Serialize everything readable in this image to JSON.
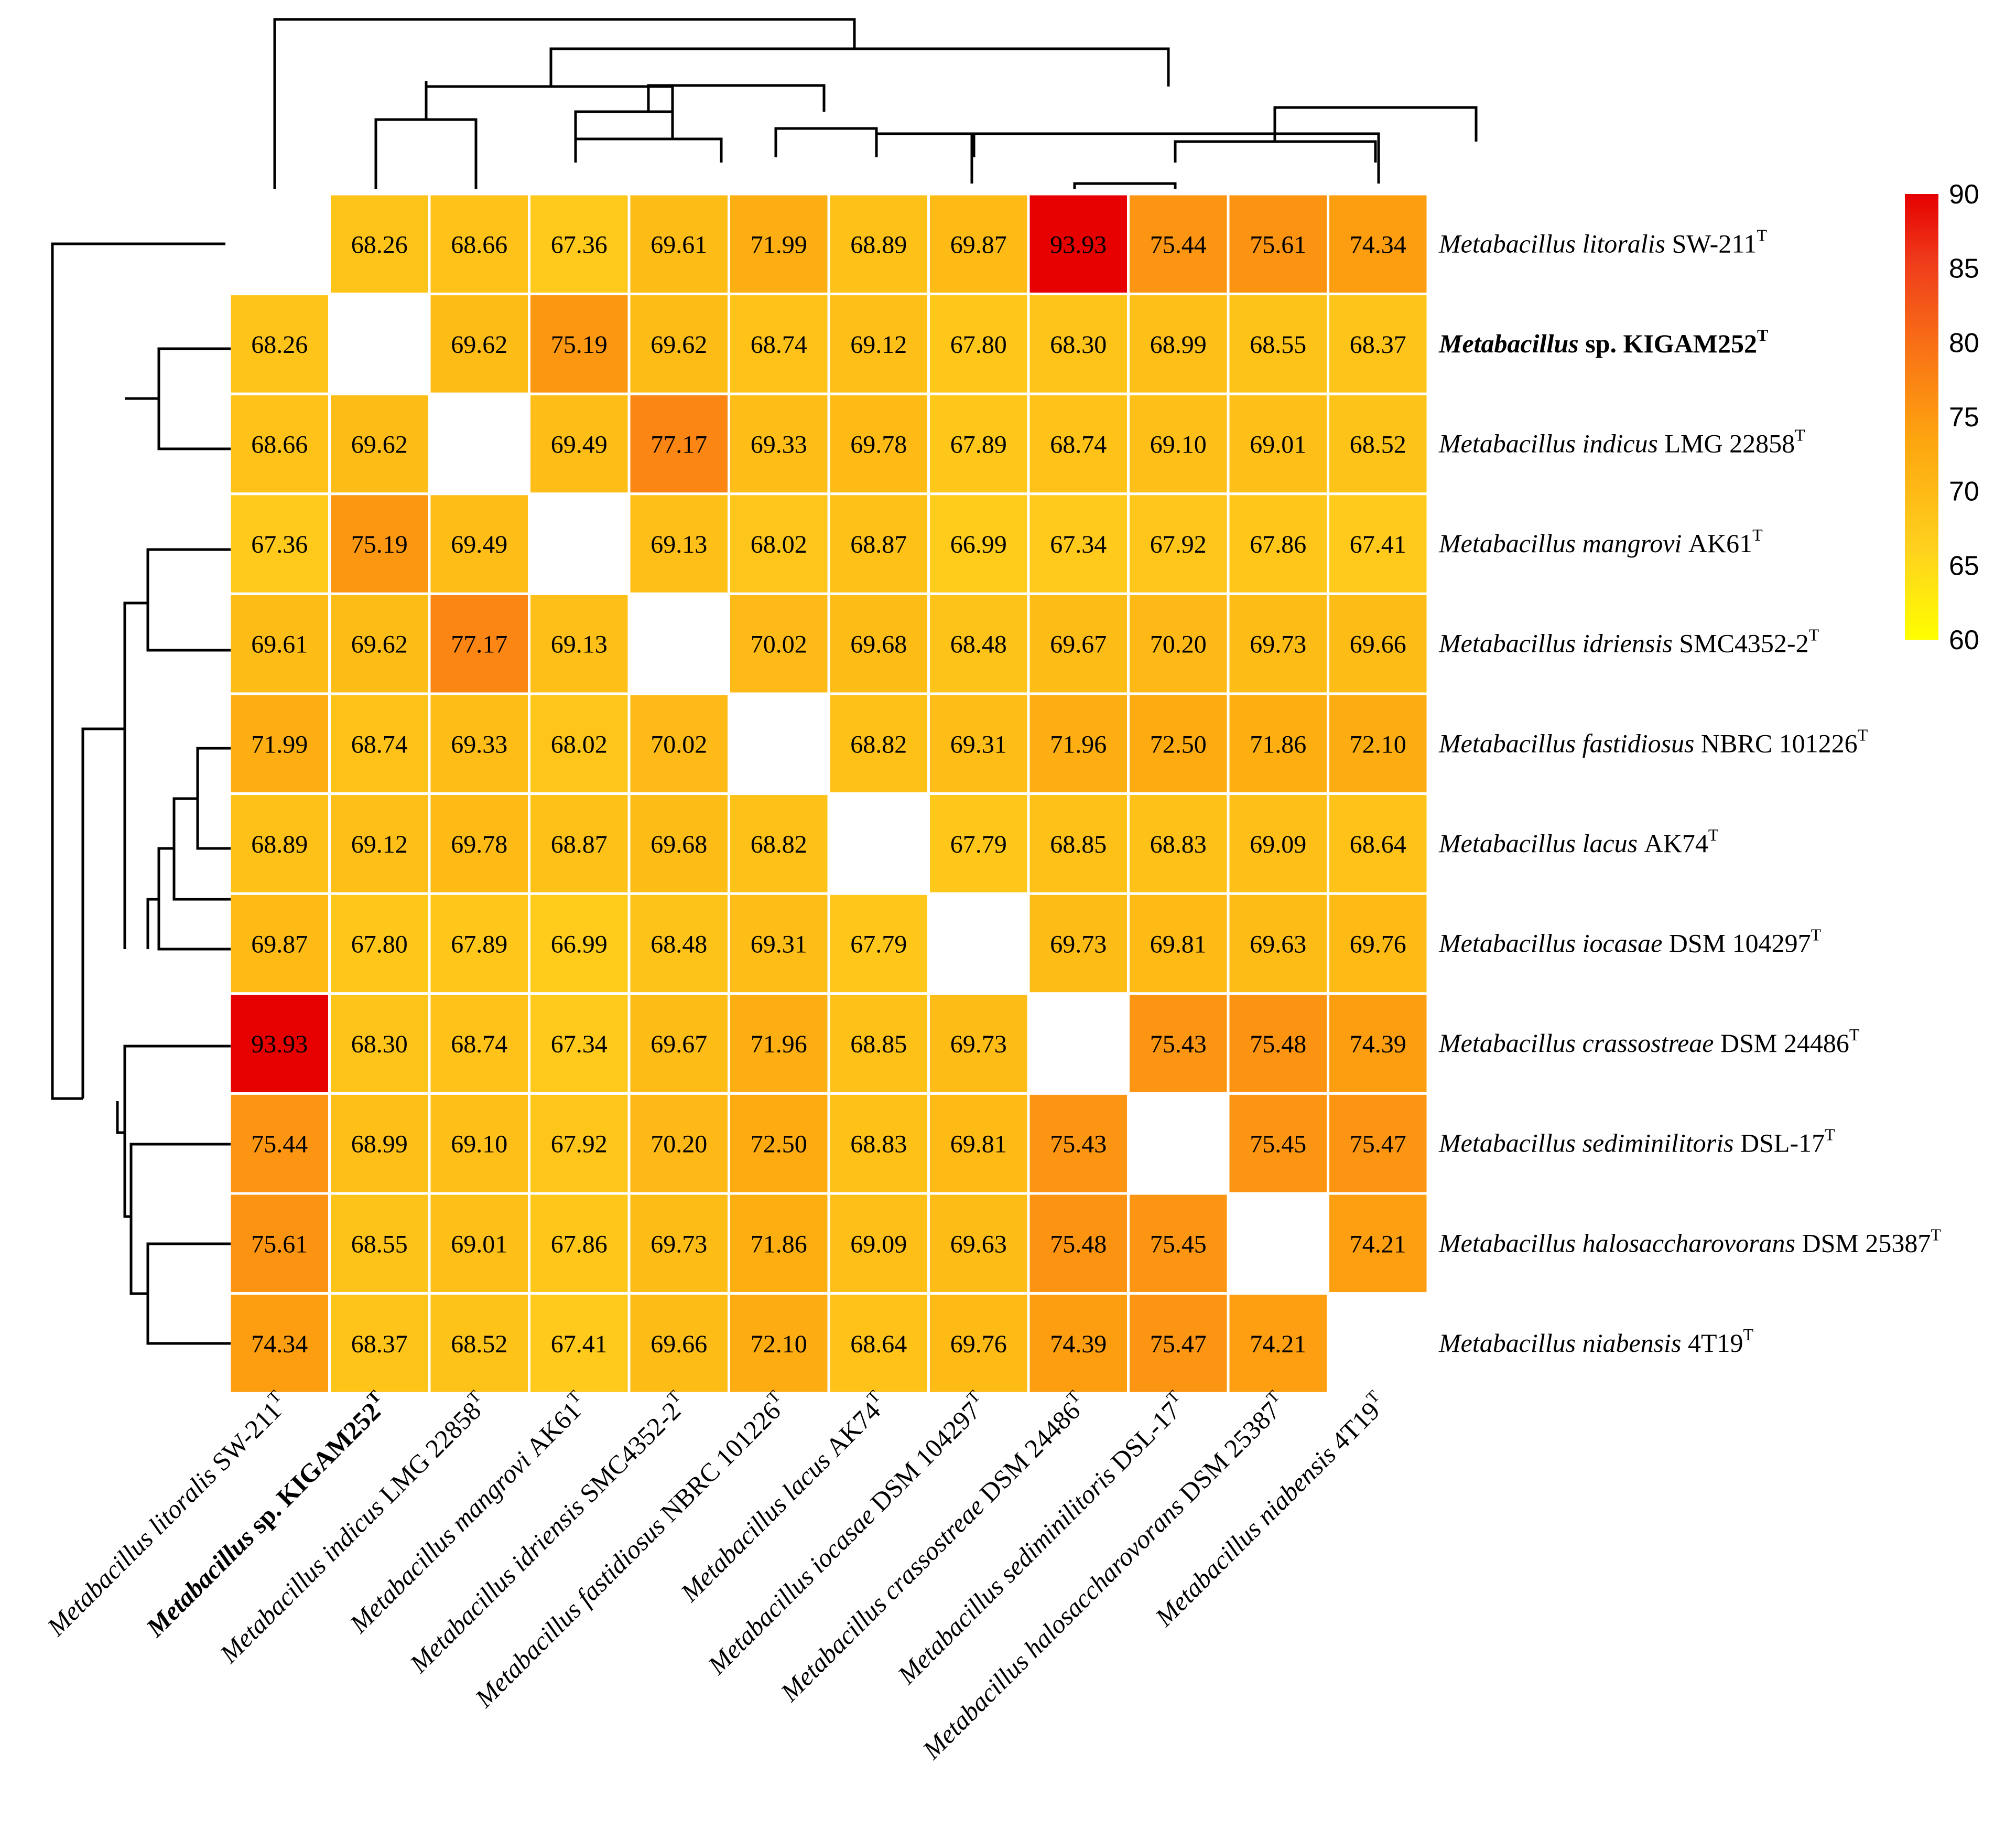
{
  "chart_data": {
    "type": "heatmap",
    "title": "",
    "labels": [
      {
        "genus": "Metabacillus",
        "species": "litoralis",
        "strain": "SW-211",
        "sup": "T",
        "bold": false
      },
      {
        "genus": "Metabacillus",
        "species": "sp.",
        "strain": "KIGAM252",
        "sup": "T",
        "bold": true
      },
      {
        "genus": "Metabacillus",
        "species": "indicus",
        "strain": "LMG 22858",
        "sup": "T",
        "bold": false
      },
      {
        "genus": "Metabacillus",
        "species": "mangrovi",
        "strain": "AK61",
        "sup": "T",
        "bold": false
      },
      {
        "genus": "Metabacillus",
        "species": "idriensis",
        "strain": "SMC4352-2",
        "sup": "T",
        "bold": false
      },
      {
        "genus": "Metabacillus",
        "species": "fastidiosus",
        "strain": "NBRC 101226",
        "sup": "T",
        "bold": false
      },
      {
        "genus": "Metabacillus",
        "species": "lacus",
        "strain": "AK74",
        "sup": "T",
        "bold": false
      },
      {
        "genus": "Metabacillus",
        "species": "iocasae",
        "strain": "DSM 104297",
        "sup": "T",
        "bold": false
      },
      {
        "genus": "Metabacillus",
        "species": "crassostreae",
        "strain": "DSM 24486",
        "sup": "T",
        "bold": false
      },
      {
        "genus": "Metabacillus",
        "species": "sediminilitoris",
        "strain": "DSL-17",
        "sup": "T",
        "bold": false
      },
      {
        "genus": "Metabacillus",
        "species": "halosaccharovorans",
        "strain": "DSM 25387",
        "sup": "T",
        "bold": false
      },
      {
        "genus": "Metabacillus",
        "species": "niabensis",
        "strain": "4T19",
        "sup": "T",
        "bold": false
      }
    ],
    "matrix": [
      [
        null,
        "68.26",
        "68.66",
        "67.36",
        "69.61",
        "71.99",
        "68.89",
        "69.87",
        "93.93",
        "75.44",
        "75.61",
        "74.34"
      ],
      [
        "68.26",
        null,
        "69.62",
        "75.19",
        "69.62",
        "68.74",
        "69.12",
        "67.80",
        "68.30",
        "68.99",
        "68.55",
        "68.37"
      ],
      [
        "68.66",
        "69.62",
        null,
        "69.49",
        "77.17",
        "69.33",
        "69.78",
        "67.89",
        "68.74",
        "69.10",
        "69.01",
        "68.52"
      ],
      [
        "67.36",
        "75.19",
        "69.49",
        null,
        "69.13",
        "68.02",
        "68.87",
        "66.99",
        "67.34",
        "67.92",
        "67.86",
        "67.41"
      ],
      [
        "69.61",
        "69.62",
        "77.17",
        "69.13",
        null,
        "70.02",
        "69.68",
        "68.48",
        "69.67",
        "70.20",
        "69.73",
        "69.66"
      ],
      [
        "71.99",
        "68.74",
        "69.33",
        "68.02",
        "70.02",
        null,
        "68.82",
        "69.31",
        "71.96",
        "72.50",
        "71.86",
        "72.10"
      ],
      [
        "68.89",
        "69.12",
        "69.78",
        "68.87",
        "69.68",
        "68.82",
        null,
        "67.79",
        "68.85",
        "68.83",
        "69.09",
        "68.64"
      ],
      [
        "69.87",
        "67.80",
        "67.89",
        "66.99",
        "68.48",
        "69.31",
        "67.79",
        null,
        "69.73",
        "69.81",
        "69.63",
        "69.76"
      ],
      [
        "93.93",
        "68.30",
        "68.74",
        "67.34",
        "69.67",
        "71.96",
        "68.85",
        "69.73",
        null,
        "75.43",
        "75.48",
        "74.39"
      ],
      [
        "75.44",
        "68.99",
        "69.10",
        "67.92",
        "70.20",
        "72.50",
        "68.83",
        "69.81",
        "75.43",
        null,
        "75.45",
        "75.47"
      ],
      [
        "75.61",
        "68.55",
        "69.01",
        "67.86",
        "69.73",
        "71.86",
        "69.09",
        "69.63",
        "75.48",
        "75.45",
        null,
        "74.21"
      ],
      [
        "74.34",
        "68.37",
        "68.52",
        "67.41",
        "69.66",
        "72.10",
        "68.64",
        "69.76",
        "74.39",
        "75.47",
        "74.21",
        null
      ]
    ],
    "colorscale": {
      "min": 60,
      "max": 90,
      "ticks": [
        "90",
        "85",
        "80",
        "75",
        "70",
        "65",
        "60"
      ],
      "stops": [
        "#ffff00",
        "#ffd21e",
        "#fda50f",
        "#f97316",
        "#ef3b1b",
        "#e60000"
      ]
    },
    "colors": {
      "grid": "#ffffff",
      "diagonal": "#ffffff",
      "dendrogram": "#000000"
    }
  }
}
